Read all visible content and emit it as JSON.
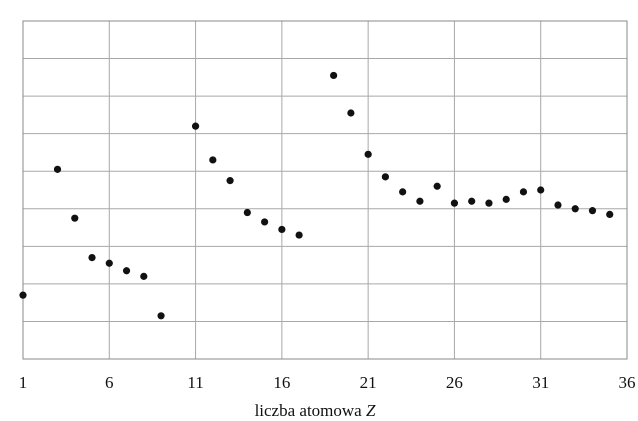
{
  "chart_data": {
    "type": "scatter",
    "title": "",
    "xlabel": "liczba atomowa Z",
    "xlabel_main": "liczba atomowa ",
    "xlabel_var": "Z",
    "ylabel": "",
    "xlim": [
      1,
      36
    ],
    "x_ticks": [
      1,
      6,
      11,
      16,
      21,
      26,
      31,
      36
    ],
    "x_tick_labels": [
      "1",
      "6",
      "11",
      "16",
      "21",
      "26",
      "31",
      "36"
    ],
    "ylim": [
      0,
      9
    ],
    "y_gridlines": 9,
    "grid": true,
    "legend": "none",
    "colors": {
      "point": "#111111",
      "grid": "#a8a8a8",
      "frame": "#8a8a8a"
    },
    "series": [
      {
        "x": [
          1,
          3,
          4,
          5,
          6,
          7,
          8,
          9,
          11,
          12,
          13,
          14,
          15,
          16,
          17,
          19,
          20,
          21,
          22,
          23,
          24,
          25,
          26,
          27,
          28,
          29,
          30,
          31,
          32,
          33,
          34,
          35
        ],
        "values": [
          1.7,
          5.05,
          3.75,
          2.7,
          2.55,
          2.35,
          2.2,
          1.15,
          6.2,
          5.3,
          4.75,
          3.9,
          3.65,
          3.45,
          3.3,
          7.55,
          6.55,
          5.45,
          4.85,
          4.45,
          4.2,
          4.6,
          4.15,
          4.2,
          4.15,
          4.25,
          4.45,
          4.5,
          4.1,
          4.0,
          3.95,
          3.85
        ]
      }
    ]
  }
}
